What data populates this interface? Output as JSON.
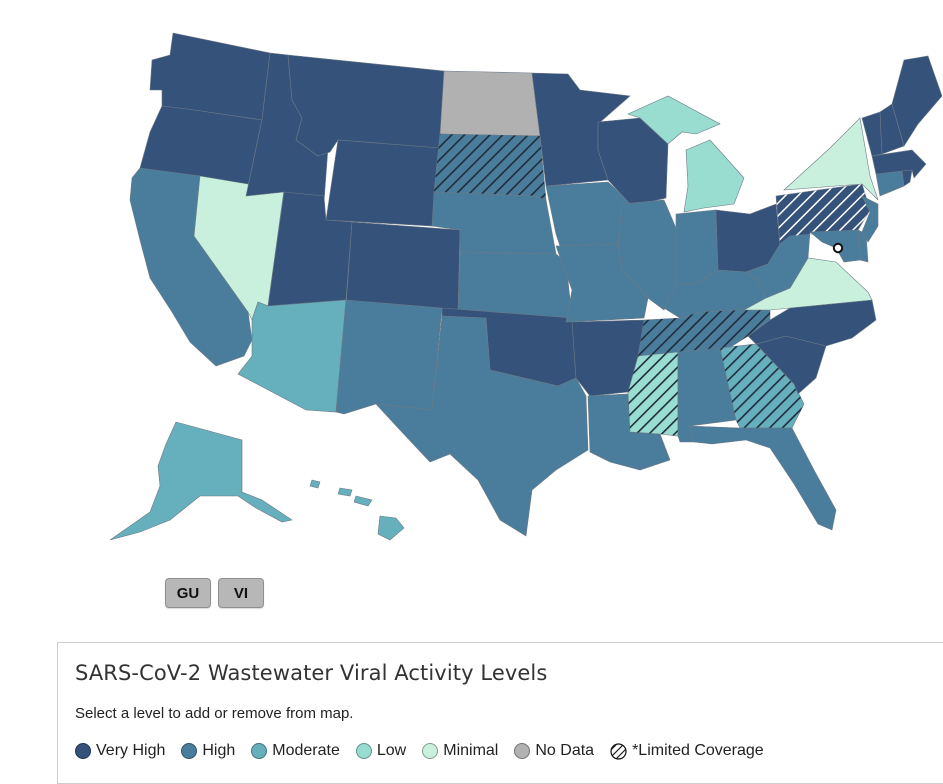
{
  "colors": {
    "very_high": "#34527a",
    "high": "#4a7d9c",
    "moderate": "#66afbd",
    "low": "#98ddd0",
    "minimal": "#c9f0dd",
    "no_data": "#b1b1b1",
    "border": "#6d7a86"
  },
  "territories": [
    "GU",
    "VI"
  ],
  "legend": {
    "title": "SARS-CoV-2 Wastewater Viral Activity Levels",
    "subtitle": "Select a level to add or remove from map.",
    "items": [
      {
        "label": "Very High",
        "level": "very_high"
      },
      {
        "label": "High",
        "level": "high"
      },
      {
        "label": "Moderate",
        "level": "moderate"
      },
      {
        "label": "Low",
        "level": "low"
      },
      {
        "label": "Minimal",
        "level": "minimal"
      },
      {
        "label": "No Data",
        "level": "no_data"
      },
      {
        "label": "*Limited Coverage",
        "level": "limited"
      }
    ]
  },
  "states": {
    "WA": {
      "level": "very_high",
      "limited": false
    },
    "OR": {
      "level": "very_high",
      "limited": false
    },
    "CA": {
      "level": "high",
      "limited": false
    },
    "NV": {
      "level": "minimal",
      "limited": false
    },
    "ID": {
      "level": "very_high",
      "limited": false
    },
    "MT": {
      "level": "very_high",
      "limited": false
    },
    "WY": {
      "level": "very_high",
      "limited": false
    },
    "UT": {
      "level": "very_high",
      "limited": false
    },
    "AZ": {
      "level": "moderate",
      "limited": false
    },
    "CO": {
      "level": "very_high",
      "limited": false
    },
    "NM": {
      "level": "high",
      "limited": false
    },
    "ND": {
      "level": "no_data",
      "limited": false
    },
    "SD": {
      "level": "high",
      "limited": true
    },
    "NE": {
      "level": "high",
      "limited": false
    },
    "KS": {
      "level": "high",
      "limited": false
    },
    "OK": {
      "level": "very_high",
      "limited": false
    },
    "TX": {
      "level": "high",
      "limited": false
    },
    "MN": {
      "level": "very_high",
      "limited": false
    },
    "IA": {
      "level": "high",
      "limited": false
    },
    "MO": {
      "level": "high",
      "limited": false
    },
    "AR": {
      "level": "very_high",
      "limited": false
    },
    "LA": {
      "level": "high",
      "limited": false
    },
    "WI": {
      "level": "very_high",
      "limited": false
    },
    "IL": {
      "level": "high",
      "limited": false
    },
    "MI": {
      "level": "low",
      "limited": false
    },
    "IN": {
      "level": "high",
      "limited": false
    },
    "OH": {
      "level": "very_high",
      "limited": false
    },
    "KY": {
      "level": "high",
      "limited": false
    },
    "TN": {
      "level": "high",
      "limited": true
    },
    "MS": {
      "level": "low",
      "limited": true
    },
    "AL": {
      "level": "high",
      "limited": false
    },
    "GA": {
      "level": "moderate",
      "limited": true
    },
    "FL": {
      "level": "high",
      "limited": false
    },
    "SC": {
      "level": "very_high",
      "limited": false
    },
    "NC": {
      "level": "very_high",
      "limited": false
    },
    "VA": {
      "level": "minimal",
      "limited": false
    },
    "WV": {
      "level": "high",
      "limited": false
    },
    "PA": {
      "level": "very_high",
      "limited": true
    },
    "NY": {
      "level": "minimal",
      "limited": false
    },
    "NJ": {
      "level": "high",
      "limited": false
    },
    "DE": {
      "level": "high",
      "limited": false
    },
    "MD": {
      "level": "high",
      "limited": false
    },
    "CT": {
      "level": "high",
      "limited": false
    },
    "RI": {
      "level": "very_high",
      "limited": false
    },
    "MA": {
      "level": "very_high",
      "limited": false
    },
    "VT": {
      "level": "very_high",
      "limited": false
    },
    "NH": {
      "level": "very_high",
      "limited": false
    },
    "ME": {
      "level": "very_high",
      "limited": false
    },
    "AK": {
      "level": "moderate",
      "limited": false
    },
    "HI": {
      "level": "moderate",
      "limited": false
    }
  }
}
